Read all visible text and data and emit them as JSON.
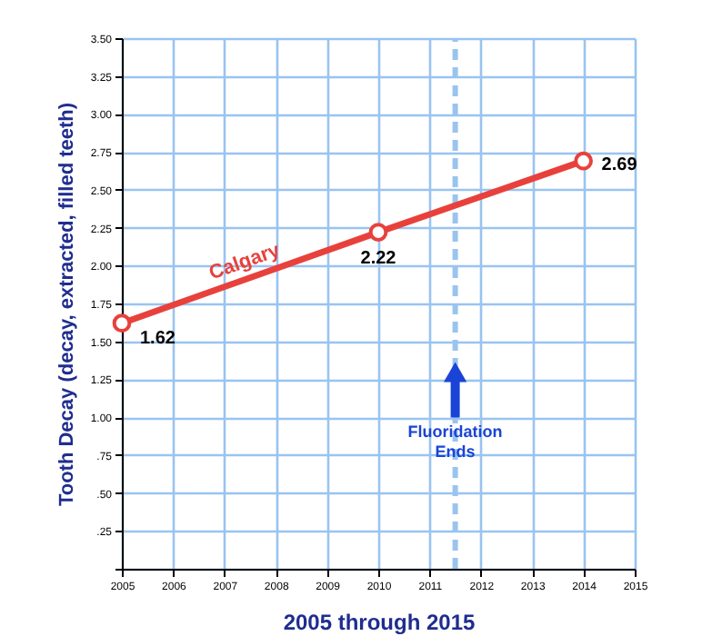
{
  "chart_data": {
    "type": "line",
    "xlabel": "2005 through 2015",
    "ylabel": "Tooth Decay (decay, extracted, filled teeth)",
    "x": [
      2005,
      2010,
      2014
    ],
    "series": [
      {
        "name": "Calgary",
        "color": "#e8413c",
        "values": [
          1.62,
          2.22,
          2.69
        ]
      }
    ],
    "data_labels": true,
    "marker": "circle",
    "line_style": "solid",
    "grid": true,
    "xlim": [
      2005,
      2015
    ],
    "xticks": [
      2005,
      2006,
      2007,
      2008,
      2009,
      2010,
      2011,
      2012,
      2013,
      2014,
      2015
    ],
    "ylim": [
      0,
      3.5
    ],
    "yticks": [
      {
        "value": 0,
        "label": null
      },
      {
        "value": 0.25,
        "label": ".25"
      },
      {
        "value": 0.5,
        "label": ".50"
      },
      {
        "value": 0.75,
        "label": ".75"
      },
      {
        "value": 1,
        "label": "1.00"
      },
      {
        "value": 1.25,
        "label": "1.25"
      },
      {
        "value": 1.5,
        "label": "1.50"
      },
      {
        "value": 1.75,
        "label": "1.75"
      },
      {
        "value": 2,
        "label": "2.00"
      },
      {
        "value": 2.25,
        "label": "2.25"
      },
      {
        "value": 2.5,
        "label": "2.50"
      },
      {
        "value": 2.75,
        "label": "2.75"
      },
      {
        "value": 3,
        "label": "3.00"
      },
      {
        "value": 3.25,
        "label": "3.25"
      },
      {
        "value": 3.5,
        "label": "3.50"
      }
    ],
    "ref_lines": [
      {
        "axis": "x",
        "value": 2011.5,
        "color": "#99c4f0",
        "line_style": "dashed"
      }
    ],
    "annotations": [
      {
        "text": "Fluoridation\nEnds",
        "x": 2011.5,
        "y": 0.95
      }
    ]
  }
}
